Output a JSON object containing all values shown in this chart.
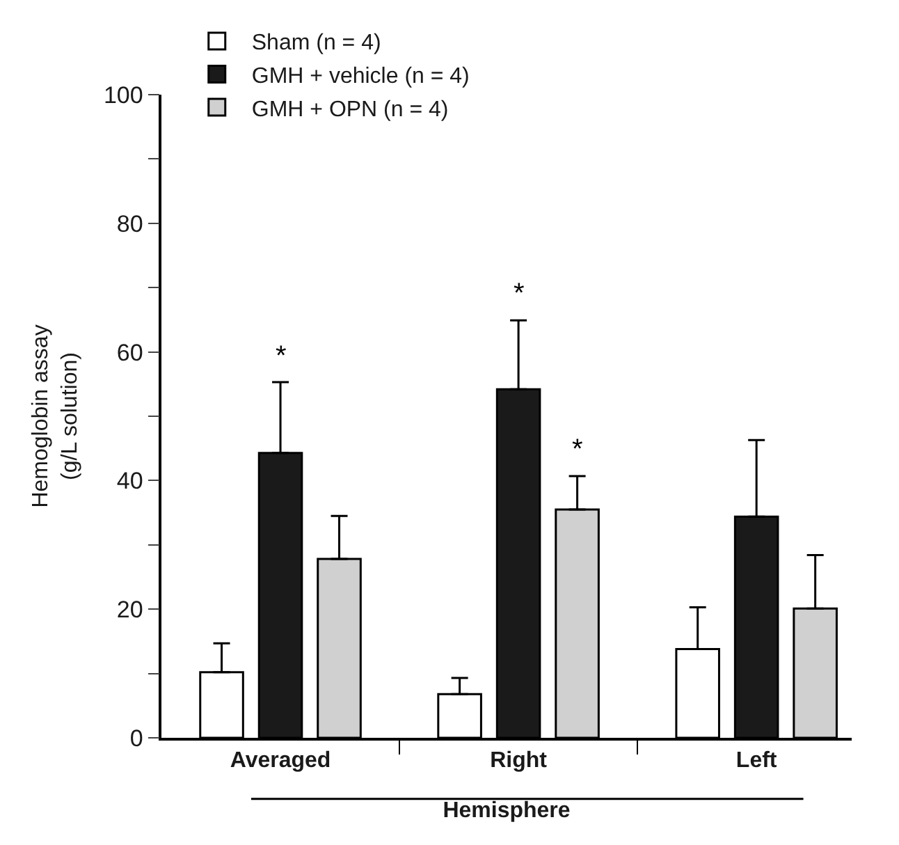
{
  "chart_data": {
    "type": "bar",
    "xlabel": "Hemisphere",
    "ylabel": "Hemoglobin assay\n(g/L solution)",
    "categories": [
      "Averaged",
      "Right",
      "Left"
    ],
    "series": [
      {
        "name": "Sham (n = 4)",
        "color": "#ffffff",
        "values": [
          10.2,
          6.8,
          13.8
        ],
        "errors": [
          [
            10.2,
            14.7
          ],
          [
            6.8,
            9.3
          ],
          [
            13.8,
            20.3
          ]
        ]
      },
      {
        "name": "GMH + vehicle (n = 4)",
        "color": "#1a1a1a",
        "values": [
          44.3,
          54.2,
          34.4
        ],
        "errors": [
          [
            44.3,
            55.3
          ],
          [
            54.2,
            64.9
          ],
          [
            34.4,
            46.3
          ]
        ],
        "value_labels": [
          "*",
          "*",
          null
        ]
      },
      {
        "name": "GMH + OPN (n = 4)",
        "color": "#d0d0d0",
        "values": [
          27.8,
          35.5,
          20.1
        ],
        "errors": [
          [
            27.8,
            34.5
          ],
          [
            35.5,
            40.7
          ],
          [
            20.1,
            28.4
          ]
        ],
        "value_labels": [
          null,
          "*",
          null
        ]
      }
    ],
    "ylim": [
      0,
      100
    ],
    "yticks": [
      0,
      {
        "value": 10,
        "label": null
      },
      20,
      {
        "value": 30,
        "label": null
      },
      40,
      {
        "value": 50,
        "label": null
      },
      60,
      {
        "value": 70,
        "label": null
      },
      80,
      {
        "value": 90,
        "label": null
      },
      100
    ],
    "legend": "top left"
  }
}
